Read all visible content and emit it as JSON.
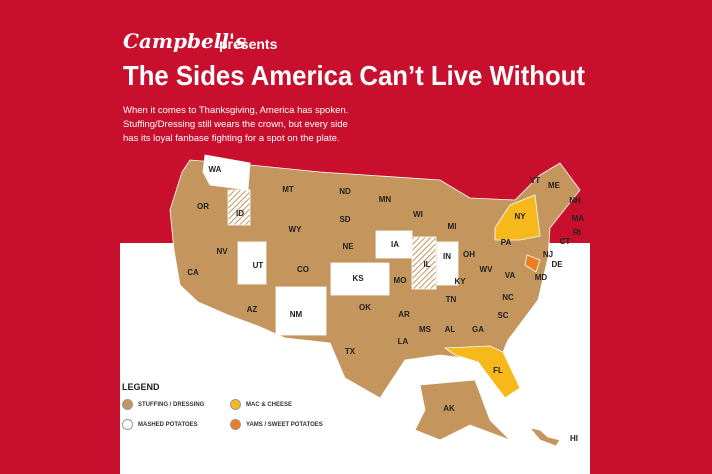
{
  "header": {
    "brand": "Campbell's",
    "presents": "presents",
    "title": "The Sides America Can’t Live Without",
    "intro": [
      "When it comes to Thanksgiving, America has spoken.",
      "Stuffing/Dressing still wears the crown, but every side",
      "has its loyal fanbase fighting for a spot on the plate."
    ]
  },
  "states": [
    "WA",
    "OR",
    "ID",
    "MT",
    "WY",
    "ND",
    "SD",
    "MN",
    "WI",
    "MI",
    "NE",
    "IA",
    "IL",
    "IN",
    "OH",
    "PA",
    "NY",
    "VT",
    "ME",
    "NH",
    "MA",
    "RI",
    "CT",
    "NJ",
    "DE",
    "MD",
    "NV",
    "UT",
    "CO",
    "KS",
    "MO",
    "KY",
    "WV",
    "VA",
    "CA",
    "AZ",
    "NM",
    "OK",
    "AR",
    "TN",
    "NC",
    "SC",
    "MS",
    "AL",
    "GA",
    "LA",
    "TX",
    "FL",
    "AK",
    "HI"
  ],
  "legend": {
    "title": "LEGEND",
    "items": [
      {
        "label": "STUFFING / DRESSING",
        "color": "#c4965e"
      },
      {
        "label": "MAC & CHEESE",
        "color": "#f7b81c"
      },
      {
        "label": "MASHED POTATOES",
        "color": "#ffffff"
      },
      {
        "label": "YAMS / SWEET POTATOES",
        "color": "#ee7d22"
      }
    ]
  }
}
